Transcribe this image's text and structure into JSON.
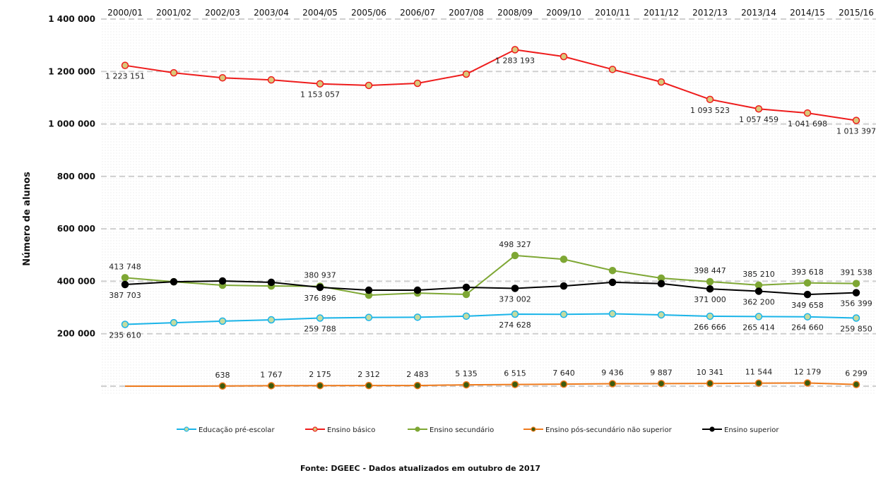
{
  "chart_data": {
    "type": "line",
    "title": "",
    "xlabel": "",
    "ylabel": "Número de alunos",
    "ylim": [
      0,
      1400000
    ],
    "yticks": [
      200000,
      400000,
      600000,
      800000,
      1000000,
      1200000,
      1400000
    ],
    "ytick_labels": [
      "200 000",
      "400 000",
      "600 000",
      "800 000",
      "1 000 000",
      "1 200 000",
      "1 400 000"
    ],
    "grid": true,
    "x_axis_position": "top",
    "legend_position": "bottom",
    "categories": [
      "2000/01",
      "2001/02",
      "2002/03",
      "2003/04",
      "2004/05",
      "2005/06",
      "2006/07",
      "2007/08",
      "2008/09",
      "2009/10",
      "2010/11",
      "2011/12",
      "2012/13",
      "2013/14",
      "2014/15",
      "2015/16"
    ],
    "series": [
      {
        "name": "Educação pré-escolar",
        "color": "#1ab4e8",
        "marker_fill": "#c5dba0",
        "label_pos": "below",
        "values": [
          235610,
          242000,
          248000,
          253000,
          259788,
          262000,
          263000,
          267000,
          274628,
          274000,
          276000,
          272000,
          266666,
          265414,
          264660,
          259850
        ],
        "labels": [
          "235 610",
          null,
          null,
          null,
          "259 788",
          null,
          null,
          null,
          "274 628",
          null,
          null,
          null,
          "266 666",
          "265 414",
          "264 660",
          "259 850"
        ]
      },
      {
        "name": "Ensino básico",
        "color": "#ee1c1c",
        "marker_fill": "#d9c87a",
        "label_pos": "below",
        "values": [
          1223151,
          1195000,
          1176000,
          1168000,
          1153057,
          1147000,
          1155000,
          1190000,
          1283193,
          1257000,
          1208000,
          1160000,
          1093523,
          1057459,
          1041698,
          1013397
        ],
        "labels": [
          "1 223 151",
          null,
          null,
          null,
          "1 153 057",
          null,
          null,
          null,
          "1 283 193",
          null,
          null,
          null,
          "1 093 523",
          "1 057 459",
          "1 041 698",
          "1 013 397"
        ]
      },
      {
        "name": "Ensino secundário",
        "color": "#7ea734",
        "marker_fill": "#7ea734",
        "label_pos": "above",
        "values": [
          413748,
          398000,
          385000,
          382000,
          380937,
          347000,
          355000,
          350000,
          498327,
          484000,
          441000,
          412000,
          398447,
          385210,
          393618,
          391538
        ],
        "labels": [
          "413 748",
          null,
          null,
          null,
          "380 937",
          null,
          null,
          null,
          "498 327",
          null,
          null,
          null,
          "398 447",
          "385 210",
          "393 618",
          "391 538"
        ]
      },
      {
        "name": "Ensino pós-secundário não superior",
        "color": "#ee7a1c",
        "marker_fill": "#3d5c0e",
        "label_pos": "above",
        "values": [
          0,
          0,
          638,
          1767,
          2175,
          2312,
          2483,
          5135,
          6515,
          7640,
          9436,
          9887,
          10341,
          11544,
          12179,
          6299
        ],
        "labels": [
          null,
          null,
          "638",
          "1 767",
          "2 175",
          "2 312",
          "2 483",
          "5 135",
          "6 515",
          "7 640",
          "9 436",
          "9 887",
          "10 341",
          "11 544",
          "12 179",
          "6 299"
        ],
        "no_marker": [
          0,
          1
        ]
      },
      {
        "name": "Ensino superior",
        "color": "#000000",
        "marker_fill": "#000000",
        "label_pos": "below",
        "values": [
          387703,
          398000,
          401000,
          396000,
          376896,
          366000,
          366000,
          377000,
          373002,
          382000,
          396000,
          391000,
          371000,
          362200,
          349658,
          356399
        ],
        "labels": [
          "387 703",
          null,
          null,
          null,
          "376 896",
          null,
          null,
          null,
          "373 002",
          null,
          null,
          null,
          "371 000",
          "362 200",
          "349 658",
          "356 399"
        ]
      }
    ],
    "source": "Fonte: DGEEC - Dados atualizados em outubro de 2017"
  }
}
